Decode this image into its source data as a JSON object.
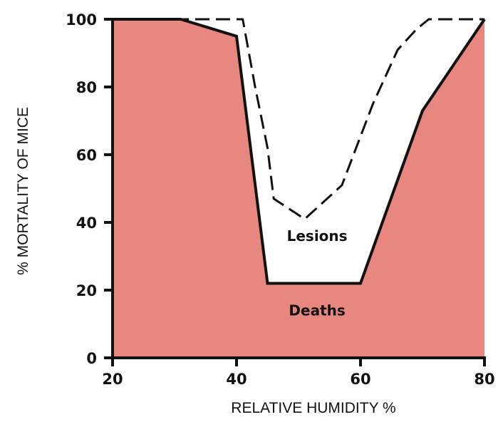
{
  "chart_data": {
    "type": "area",
    "xlabel": "RELATIVE HUMIDITY %",
    "ylabel": "% MORTALITY OF MICE",
    "xlim": [
      20,
      80
    ],
    "ylim": [
      0,
      100
    ],
    "x_ticks": [
      "20",
      "40",
      "60",
      "80"
    ],
    "y_ticks": [
      "0",
      "20",
      "40",
      "60",
      "80",
      "100"
    ],
    "grid": false,
    "series": [
      {
        "name": "Deaths",
        "style": "filled-area",
        "color": "#e88680",
        "points": [
          [
            20,
            100
          ],
          [
            31,
            100
          ],
          [
            40,
            95
          ],
          [
            45,
            22
          ],
          [
            60,
            22
          ],
          [
            70,
            73
          ],
          [
            80,
            100
          ]
        ]
      },
      {
        "name": "Lesions",
        "style": "dashed-line",
        "color": "#111111",
        "points": [
          [
            20,
            100
          ],
          [
            33,
            100
          ],
          [
            41,
            100
          ],
          [
            43,
            80
          ],
          [
            45,
            62
          ],
          [
            46,
            47
          ],
          [
            51,
            41
          ],
          [
            57,
            51
          ],
          [
            62,
            75
          ],
          [
            66,
            91
          ],
          [
            69,
            97
          ],
          [
            71,
            100
          ],
          [
            80,
            100
          ]
        ]
      }
    ],
    "annotations": [
      {
        "text": "Lesions",
        "x": 53,
        "y": 36
      },
      {
        "text": "Deaths",
        "x": 53,
        "y": 14
      }
    ]
  }
}
